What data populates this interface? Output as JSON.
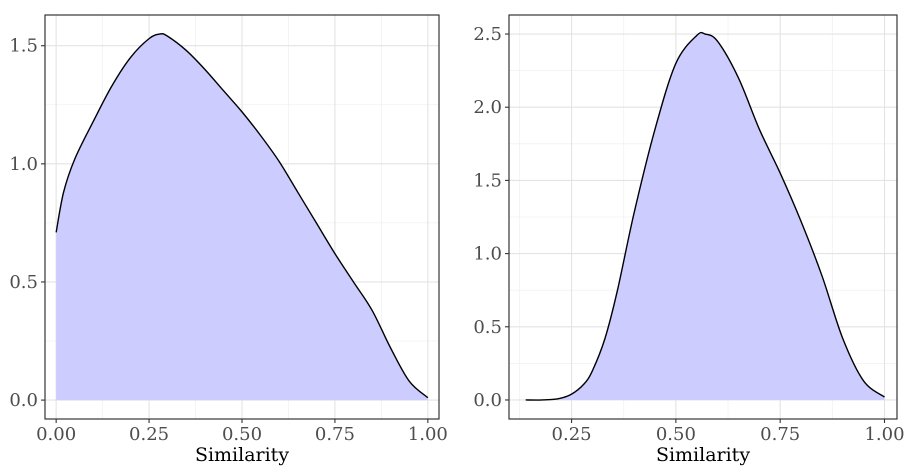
{
  "chart_data": [
    {
      "type": "area",
      "title": "",
      "xlabel": "Similarity",
      "ylabel": "",
      "xlim": [
        -0.03,
        1.03
      ],
      "ylim": [
        -0.08,
        1.63
      ],
      "x_ticks": [
        0.0,
        0.25,
        0.5,
        0.75,
        1.0
      ],
      "x_tick_labels": [
        "0.00",
        "0.25",
        "0.50",
        "0.75",
        "1.00"
      ],
      "y_ticks": [
        0.0,
        0.5,
        1.0,
        1.5
      ],
      "y_tick_labels": [
        "0.0",
        "0.5",
        "1.0",
        "1.5"
      ],
      "grid": true,
      "fill_color": "#ccccff",
      "line_color": "#000000",
      "series": [
        {
          "x": [
            0.0,
            0.02,
            0.05,
            0.1,
            0.15,
            0.2,
            0.25,
            0.28,
            0.3,
            0.35,
            0.4,
            0.45,
            0.5,
            0.55,
            0.6,
            0.65,
            0.7,
            0.75,
            0.8,
            0.85,
            0.9,
            0.95,
            1.0
          ],
          "y": [
            0.71,
            0.88,
            1.02,
            1.18,
            1.33,
            1.45,
            1.53,
            1.55,
            1.54,
            1.48,
            1.4,
            1.31,
            1.22,
            1.12,
            1.01,
            0.88,
            0.75,
            0.62,
            0.5,
            0.38,
            0.22,
            0.08,
            0.01
          ]
        }
      ]
    },
    {
      "type": "area",
      "title": "",
      "xlabel": "Similarity",
      "ylabel": "",
      "xlim": [
        0.1,
        1.03
      ],
      "ylim": [
        -0.13,
        2.63
      ],
      "x_ticks": [
        0.25,
        0.5,
        0.75,
        1.0
      ],
      "x_tick_labels": [
        "0.25",
        "0.50",
        "0.75",
        "1.00"
      ],
      "y_ticks": [
        0.0,
        0.5,
        1.0,
        1.5,
        2.0,
        2.5
      ],
      "y_tick_labels": [
        "0.0",
        "0.5",
        "1.0",
        "1.5",
        "2.0",
        "2.5"
      ],
      "grid": true,
      "fill_color": "#ccccff",
      "line_color": "#000000",
      "series": [
        {
          "x": [
            0.14,
            0.18,
            0.22,
            0.25,
            0.28,
            0.3,
            0.33,
            0.36,
            0.4,
            0.45,
            0.5,
            0.55,
            0.57,
            0.6,
            0.65,
            0.7,
            0.75,
            0.8,
            0.85,
            0.9,
            0.95,
            1.0
          ],
          "y": [
            0.0,
            0.0,
            0.01,
            0.04,
            0.11,
            0.2,
            0.42,
            0.75,
            1.28,
            1.85,
            2.3,
            2.49,
            2.5,
            2.45,
            2.2,
            1.85,
            1.55,
            1.22,
            0.85,
            0.42,
            0.13,
            0.02
          ]
        }
      ]
    }
  ]
}
